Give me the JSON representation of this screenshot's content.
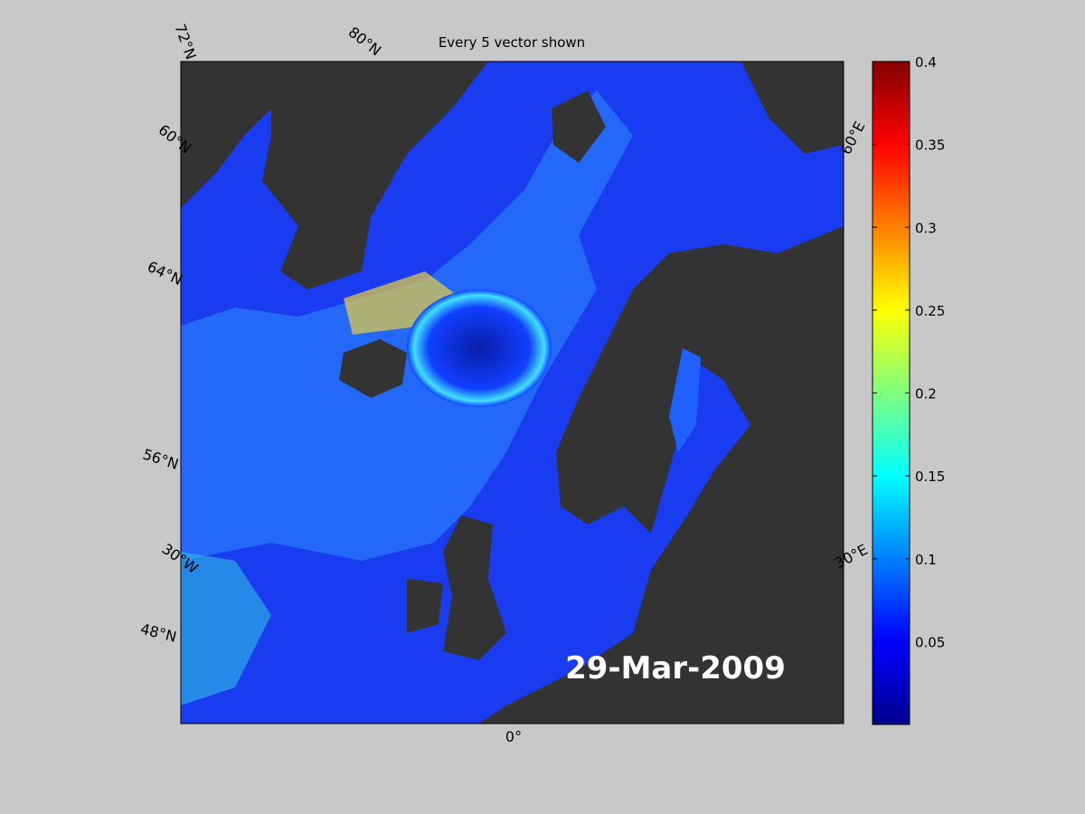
{
  "title": "Every 5 vector shown",
  "date": "29-Mar-2009",
  "graticule_labels": [
    "72°N",
    "80°N",
    "60°N",
    "64°N",
    "56°N",
    "30°W",
    "48°N",
    "0°",
    "30°E",
    "60°E"
  ],
  "colorbar": {
    "range": [
      0,
      0.4
    ],
    "ticks": [
      0.05,
      0.1,
      0.15,
      0.2,
      0.25,
      0.3,
      0.35,
      0.4
    ]
  }
}
